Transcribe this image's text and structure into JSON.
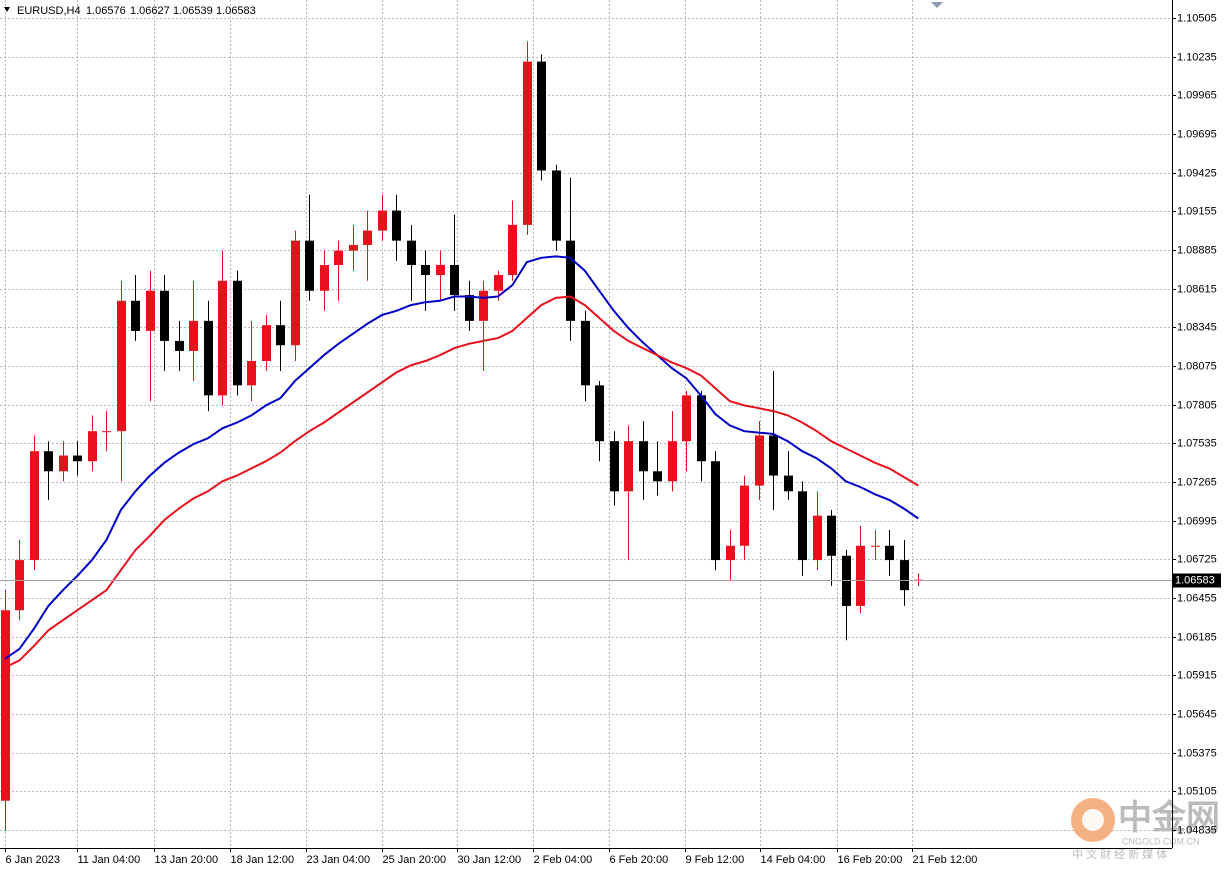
{
  "chart_data": {
    "type": "candlestick",
    "title": "EURUSD,H4",
    "open": [
      1.0504,
      1.0637,
      1.0672,
      1.0748,
      1.0734,
      1.0745,
      1.0741,
      1.0762,
      1.0762,
      1.0853,
      1.0832,
      1.086,
      1.0825,
      1.0818,
      1.0839,
      1.0787,
      1.0867,
      1.0794,
      1.0811,
      1.0836,
      1.0822,
      1.0895,
      1.086,
      1.0878,
      1.0888,
      1.0892,
      1.0902,
      1.0916,
      1.0895,
      1.0878,
      1.0871,
      1.0878,
      1.0857,
      1.0839,
      1.086,
      1.0871,
      1.0906,
      1.102,
      1.0944,
      1.0895,
      1.0839,
      1.0794,
      1.0755,
      1.072,
      1.0755,
      1.0734,
      1.0727,
      1.0755,
      1.0787,
      1.0741,
      1.0672,
      1.0682,
      1.0724,
      1.0759,
      1.0731,
      1.072,
      1.0672,
      1.0703,
      1.0675,
      1.064,
      1.0682,
      1.0682,
      1.0672,
      1.06576
    ],
    "high": [
      1.0651,
      1.0686,
      1.0759,
      1.0755,
      1.0755,
      1.0755,
      1.0773,
      1.0776,
      1.0867,
      1.0871,
      1.0874,
      1.0871,
      1.0839,
      1.0867,
      1.0853,
      1.0888,
      1.0874,
      1.0839,
      1.0843,
      1.0853,
      1.0902,
      1.0927,
      1.0888,
      1.0895,
      1.0906,
      1.0916,
      1.0927,
      1.0927,
      1.0906,
      1.0888,
      1.0888,
      1.0913,
      1.0867,
      1.0867,
      1.0874,
      1.0923,
      1.1034,
      1.1025,
      1.0948,
      1.0939,
      1.0846,
      1.0797,
      1.0762,
      1.0766,
      1.0769,
      1.0755,
      1.0776,
      1.079,
      1.079,
      1.0748,
      1.0693,
      1.0731,
      1.0769,
      1.0804,
      1.0748,
      1.0727,
      1.072,
      1.0707,
      1.0679,
      1.0696,
      1.0693,
      1.0693,
      1.0686,
      1.06627
    ],
    "low": [
      1.0483,
      1.063,
      1.0665,
      1.0714,
      1.0727,
      1.0731,
      1.0734,
      1.0748,
      1.0727,
      1.0825,
      1.0783,
      1.0804,
      1.0804,
      1.0797,
      1.0776,
      1.078,
      1.0787,
      1.0783,
      1.0804,
      1.0804,
      1.0811,
      1.0853,
      1.0846,
      1.0853,
      1.0874,
      1.0867,
      1.0895,
      1.0881,
      1.0853,
      1.0846,
      1.0853,
      1.0846,
      1.0832,
      1.0804,
      1.0853,
      1.0867,
      1.0899,
      1.0937,
      1.0888,
      1.0825,
      1.0783,
      1.0741,
      1.071,
      1.0672,
      1.0714,
      1.0717,
      1.072,
      1.0734,
      1.0727,
      1.0665,
      1.0658,
      1.0672,
      1.0714,
      1.0707,
      1.0714,
      1.0661,
      1.0665,
      1.0654,
      1.0616,
      1.0635,
      1.0672,
      1.0661,
      1.064,
      1.06539
    ],
    "close": [
      1.0637,
      1.0672,
      1.0748,
      1.0734,
      1.0745,
      1.0741,
      1.0762,
      1.0762,
      1.0853,
      1.0832,
      1.086,
      1.0825,
      1.0818,
      1.0839,
      1.0787,
      1.0867,
      1.0794,
      1.0811,
      1.0836,
      1.0822,
      1.0895,
      1.086,
      1.0878,
      1.0888,
      1.0892,
      1.0902,
      1.0916,
      1.0895,
      1.0878,
      1.0871,
      1.0878,
      1.0857,
      1.0839,
      1.086,
      1.0871,
      1.0906,
      1.102,
      1.0944,
      1.0895,
      1.0839,
      1.0794,
      1.0755,
      1.072,
      1.0755,
      1.0734,
      1.0727,
      1.0755,
      1.0787,
      1.0741,
      1.0672,
      1.0682,
      1.0724,
      1.0759,
      1.0731,
      1.072,
      1.0672,
      1.0703,
      1.0675,
      1.064,
      1.0682,
      1.0682,
      1.0672,
      1.0651,
      1.06583
    ],
    "up_color": "#e8101c",
    "down_color": "#000000",
    "series": [
      {
        "color": "#0000c8",
        "values": [
          1.0603,
          1.061,
          1.0624,
          1.064,
          1.0651,
          1.0661,
          1.0672,
          1.0686,
          1.0707,
          1.072,
          1.0731,
          1.074,
          1.0747,
          1.0753,
          1.0757,
          1.0764,
          1.0768,
          1.0773,
          1.078,
          1.0785,
          1.0797,
          1.0806,
          1.0815,
          1.0823,
          1.083,
          1.0837,
          1.0843,
          1.0846,
          1.085,
          1.0852,
          1.0853,
          1.0856,
          1.0856,
          1.0855,
          1.0856,
          1.0864,
          1.088,
          1.0883,
          1.0884,
          1.0883,
          1.0874,
          1.086,
          1.0846,
          1.0834,
          1.0824,
          1.0815,
          1.0806,
          1.0799,
          1.0787,
          1.0774,
          1.0766,
          1.0762,
          1.0761,
          1.076,
          1.0755,
          1.0748,
          1.0743,
          1.0736,
          1.0727,
          1.0723,
          1.0718,
          1.0714,
          1.0708,
          1.0701
        ]
      },
      {
        "color": "#e8101c",
        "values": [
          1.0597,
          1.0602,
          1.0612,
          1.0623,
          1.063,
          1.0637,
          1.0644,
          1.0651,
          1.0665,
          1.0679,
          1.0689,
          1.07,
          1.0708,
          1.0715,
          1.072,
          1.0727,
          1.0731,
          1.0736,
          1.0741,
          1.0747,
          1.0755,
          1.0762,
          1.0768,
          1.0775,
          1.0782,
          1.0789,
          1.0796,
          1.0803,
          1.0808,
          1.0811,
          1.0815,
          1.082,
          1.0823,
          1.0825,
          1.0827,
          1.0832,
          1.0841,
          1.085,
          1.0855,
          1.0856,
          1.085,
          1.0841,
          1.0832,
          1.0825,
          1.082,
          1.0815,
          1.081,
          1.0806,
          1.0801,
          1.0792,
          1.0783,
          1.078,
          1.0778,
          1.0776,
          1.0773,
          1.0768,
          1.0762,
          1.0755,
          1.075,
          1.0745,
          1.074,
          1.0736,
          1.073,
          1.0724
        ]
      }
    ],
    "xlim": [
      -0.34,
      80.5
    ],
    "xticks": [
      {
        "value": 0,
        "label": "6 Jan 2023"
      },
      {
        "value": 5,
        "label": "11 Jan 04:00"
      },
      {
        "value": 10.3,
        "label": "13 Jan 20:00"
      },
      {
        "value": 15.5,
        "label": "18 Jan 12:00"
      },
      {
        "value": 20.8,
        "label": "23 Jan 04:00"
      },
      {
        "value": 26,
        "label": "25 Jan 20:00"
      },
      {
        "value": 31.2,
        "label": "30 Jan 12:00"
      },
      {
        "value": 36.4,
        "label": "2 Feb 04:00"
      },
      {
        "value": 41.7,
        "label": "6 Feb 20:00"
      },
      {
        "value": 46.9,
        "label": "9 Feb 12:00"
      },
      {
        "value": 52.1,
        "label": "14 Feb 04:00"
      },
      {
        "value": 57.4,
        "label": "16 Feb 20:00"
      },
      {
        "value": 62.6,
        "label": "21 Feb 12:00"
      }
    ],
    "ylim": [
      1.0471,
      1.1063
    ],
    "yticks": [
      1.10505,
      1.10235,
      1.09965,
      1.09695,
      1.09425,
      1.09155,
      1.08885,
      1.08615,
      1.08345,
      1.08075,
      1.07805,
      1.07535,
      1.07265,
      1.06995,
      1.06725,
      1.06455,
      1.06185,
      1.05915,
      1.05645,
      1.05375,
      1.05105,
      1.04835
    ],
    "grid": true,
    "watermark": {
      "logo": "中金网",
      "site": "CNGOLD.COM.CN",
      "slogan": "中 文 财 经 新 媒 体"
    }
  }
}
